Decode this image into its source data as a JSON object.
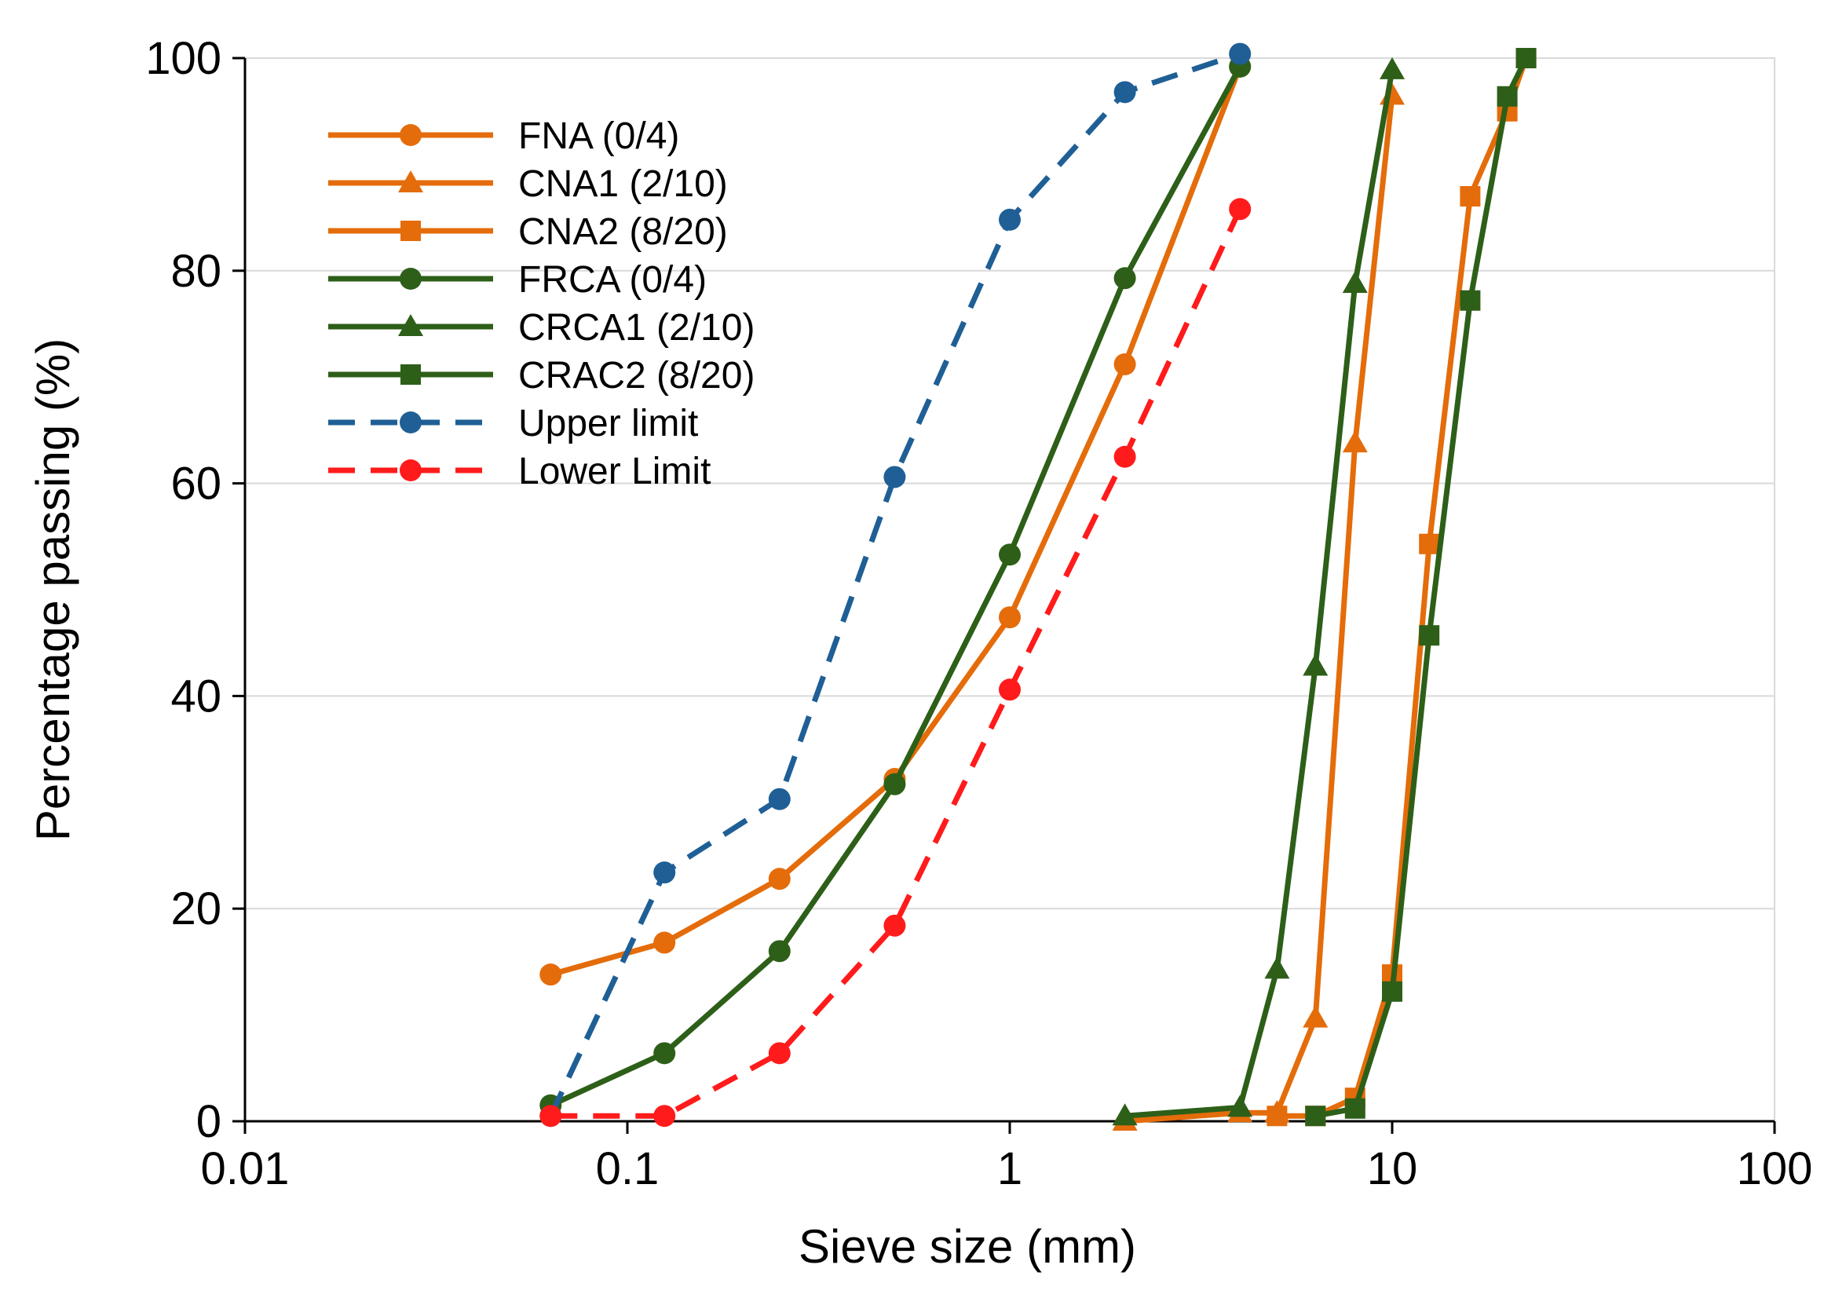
{
  "chart_data": {
    "type": "line",
    "title": "",
    "xlabel": "Sieve size (mm)",
    "ylabel": "Percentage passing (%)",
    "x_scale": "log",
    "xlim": [
      0.01,
      100
    ],
    "ylim": [
      0,
      100
    ],
    "x_ticks": [
      0.01,
      0.1,
      1,
      10,
      100
    ],
    "x_tick_labels": [
      "0.01",
      "0.1",
      "1",
      "10",
      "100"
    ],
    "y_ticks": [
      0,
      20,
      40,
      60,
      80,
      100
    ],
    "y_tick_labels": [
      "0",
      "20",
      "40",
      "60",
      "80",
      "100"
    ],
    "grid": "horizontal",
    "legend_position": "top-left",
    "series": [
      {
        "name": "FNA  (0/4)",
        "color": "#E46C0A",
        "marker": "circle",
        "dash": "solid",
        "x": [
          0.063,
          0.125,
          0.25,
          0.5,
          1,
          2,
          4
        ],
        "y": [
          13.8,
          16.8,
          22.8,
          32.2,
          47.4,
          71.2,
          99.2
        ]
      },
      {
        "name": "CNA1  (2/10)",
        "color": "#E46C0A",
        "marker": "triangle",
        "dash": "solid",
        "x": [
          2,
          4,
          5,
          6.3,
          8,
          10
        ],
        "y": [
          0,
          0.8,
          0.8,
          9.7,
          63.8,
          96.5
        ]
      },
      {
        "name": "CNA2 (8/20)",
        "color": "#E46C0A",
        "marker": "square",
        "dash": "solid",
        "x": [
          5,
          6.3,
          8,
          10,
          12.5,
          16,
          20,
          22.4
        ],
        "y": [
          0.5,
          0.5,
          2.2,
          13.8,
          54.3,
          87,
          95,
          100
        ]
      },
      {
        "name": "FRCA (0/4)",
        "color": "#2D5F18",
        "marker": "circle",
        "dash": "solid",
        "x": [
          0.063,
          0.125,
          0.25,
          0.5,
          1,
          2,
          4
        ],
        "y": [
          1.5,
          6.4,
          16,
          31.7,
          53.3,
          79.3,
          99.2
        ]
      },
      {
        "name": "CRCA1 (2/10)",
        "color": "#2D5F18",
        "marker": "triangle",
        "dash": "solid",
        "x": [
          2,
          4,
          5,
          6.3,
          8,
          10
        ],
        "y": [
          0.5,
          1.3,
          14.3,
          42.8,
          78.8,
          98.9
        ]
      },
      {
        "name": "CRAC2 (8/20)",
        "color": "#2D5F18",
        "marker": "square",
        "dash": "solid",
        "x": [
          6.3,
          8,
          10,
          12.5,
          16,
          20,
          22.4
        ],
        "y": [
          0.5,
          1.2,
          12.2,
          45.7,
          77.2,
          96.4,
          100
        ]
      },
      {
        "name": "Upper limit",
        "color": "#1F5F96",
        "marker": "circle",
        "dash": "dashed",
        "x": [
          0.063,
          0.125,
          0.25,
          0.5,
          1,
          2,
          4
        ],
        "y": [
          0.5,
          23.4,
          30.3,
          60.6,
          84.8,
          96.8,
          100.4
        ]
      },
      {
        "name": "Lower Limit",
        "color": "#FF1B1B",
        "marker": "circle",
        "dash": "dashed",
        "x": [
          0.063,
          0.125,
          0.25,
          0.5,
          1,
          2,
          4
        ],
        "y": [
          0.5,
          0.5,
          6.4,
          18.4,
          40.6,
          62.5,
          85.8
        ]
      }
    ]
  }
}
